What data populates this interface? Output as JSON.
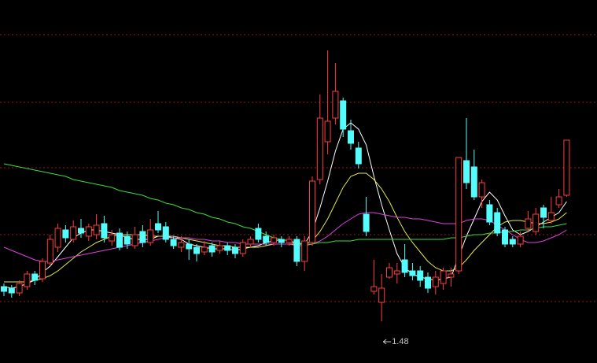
{
  "chart_data": {
    "type": "candlestick",
    "ylim": [
      1.215,
      3.52
    ],
    "up_color": "#ff3c3c",
    "down_color": "#54fcfc",
    "background": "#000000",
    "grid_color": "#a01818",
    "annotation": "1.48",
    "open": [
      1.7,
      1.69,
      1.66,
      1.7,
      1.78,
      1.75,
      1.85,
      1.95,
      2.06,
      2.0,
      2.07,
      2.02,
      2.03,
      2.1,
      1.99,
      2.04,
      2.02,
      1.96,
      2.05,
      1.98,
      2.1,
      2.08,
      2.0,
      1.95,
      1.97,
      1.95,
      1.92,
      1.96,
      1.93,
      1.96,
      1.95,
      1.91,
      1.97,
      2.07,
      2.02,
      1.98,
      2.0,
      1.98,
      2.0,
      1.86,
      1.98,
      2.38,
      2.62,
      2.77,
      2.88,
      2.69,
      2.58,
      2.16,
      1.67,
      1.6,
      1.76,
      1.78,
      1.87,
      1.8,
      1.8,
      1.76,
      1.7,
      1.72,
      1.76,
      1.8,
      2.5,
      2.46,
      2.27,
      2.22,
      2.17,
      2.06,
      2.0,
      1.97,
      2.07,
      2.05,
      2.2,
      2.12,
      2.22,
      2.28
    ],
    "high": [
      1.72,
      1.71,
      1.74,
      1.8,
      1.8,
      1.88,
      2.03,
      2.1,
      2.09,
      2.12,
      2.13,
      2.1,
      2.16,
      2.15,
      2.06,
      2.07,
      2.05,
      2.08,
      2.09,
      2.13,
      2.18,
      2.11,
      2.02,
      2.02,
      2.0,
      1.97,
      1.99,
      1.98,
      1.99,
      1.98,
      1.97,
      2.0,
      2.02,
      2.1,
      2.05,
      2.03,
      2.02,
      2.02,
      2.02,
      2.02,
      2.4,
      2.92,
      3.2,
      3.12,
      2.9,
      2.76,
      2.62,
      2.27,
      1.87,
      1.78,
      1.85,
      1.85,
      1.97,
      1.85,
      1.83,
      1.79,
      1.8,
      1.82,
      1.82,
      2.52,
      2.77,
      2.57,
      2.38,
      2.25,
      2.2,
      2.08,
      2.02,
      2.05,
      2.18,
      2.2,
      2.22,
      2.27,
      2.32,
      2.63
    ],
    "low": [
      1.64,
      1.63,
      1.64,
      1.68,
      1.71,
      1.73,
      1.83,
      1.92,
      1.98,
      1.98,
      2.01,
      1.99,
      2.0,
      1.98,
      1.96,
      1.93,
      1.94,
      1.94,
      1.95,
      1.96,
      2.04,
      1.98,
      1.94,
      1.92,
      1.87,
      1.86,
      1.9,
      1.89,
      1.91,
      1.9,
      1.88,
      1.89,
      1.95,
      1.98,
      1.96,
      1.96,
      1.95,
      1.96,
      1.83,
      1.8,
      1.96,
      2.35,
      2.54,
      2.73,
      2.65,
      2.57,
      2.45,
      2.02,
      1.65,
      1.48,
      1.75,
      1.72,
      1.76,
      1.74,
      1.7,
      1.66,
      1.65,
      1.68,
      1.7,
      1.78,
      2.32,
      2.25,
      2.2,
      2.09,
      2.02,
      1.95,
      1.95,
      1.95,
      2.05,
      2.03,
      2.07,
      2.1,
      2.2,
      2.27
    ],
    "close": [
      1.67,
      1.66,
      1.72,
      1.78,
      1.74,
      1.86,
      2.0,
      2.07,
      2.01,
      2.08,
      2.04,
      2.08,
      2.09,
      2.01,
      2.03,
      1.95,
      1.97,
      2.03,
      1.98,
      2.06,
      2.06,
      2.0,
      1.96,
      1.98,
      1.94,
      1.91,
      1.95,
      1.92,
      1.96,
      1.93,
      1.91,
      1.98,
      2.0,
      2.0,
      1.98,
      2.01,
      1.98,
      2.0,
      1.86,
      1.99,
      2.37,
      2.77,
      2.75,
      2.94,
      2.7,
      2.61,
      2.48,
      2.05,
      1.7,
      1.69,
      1.82,
      1.8,
      1.79,
      1.77,
      1.74,
      1.69,
      1.76,
      1.8,
      1.78,
      2.52,
      2.36,
      2.27,
      2.36,
      2.11,
      2.04,
      1.97,
      1.97,
      2.02,
      2.13,
      2.16,
      2.14,
      2.17,
      2.27,
      2.63
    ],
    "lines": [
      {
        "color": "#ffffff",
        "values": [
          1.7,
          1.69,
          1.7,
          1.72,
          1.74,
          1.79,
          1.83,
          1.89,
          1.95,
          2.01,
          2.04,
          2.06,
          2.06,
          2.05,
          2.04,
          2.03,
          2.01,
          2.0,
          2.0,
          2.0,
          2.02,
          2.02,
          2.01,
          2.0,
          1.97,
          1.96,
          1.95,
          1.94,
          1.94,
          1.94,
          1.93,
          1.94,
          1.95,
          1.96,
          1.98,
          1.99,
          2.0,
          1.99,
          1.97,
          1.97,
          2.05,
          2.2,
          2.37,
          2.56,
          2.7,
          2.74,
          2.7,
          2.6,
          2.4,
          2.22,
          2.06,
          1.91,
          1.82,
          1.78,
          1.76,
          1.75,
          1.74,
          1.75,
          1.76,
          1.89,
          2.02,
          2.13,
          2.24,
          2.3,
          2.25,
          2.15,
          2.06,
          2.03,
          2.05,
          2.08,
          2.11,
          2.14,
          2.17,
          2.24
        ]
      },
      {
        "color": "#e8e84a",
        "values": [
          1.73,
          1.73,
          1.73,
          1.73,
          1.74,
          1.75,
          1.77,
          1.8,
          1.84,
          1.88,
          1.92,
          1.95,
          1.98,
          2.0,
          2.02,
          2.03,
          2.03,
          2.03,
          2.03,
          2.02,
          2.02,
          2.02,
          2.02,
          2.01,
          2.0,
          1.99,
          1.98,
          1.97,
          1.96,
          1.96,
          1.95,
          1.95,
          1.95,
          1.95,
          1.96,
          1.97,
          1.97,
          1.97,
          1.97,
          1.97,
          1.99,
          2.05,
          2.13,
          2.23,
          2.33,
          2.4,
          2.42,
          2.42,
          2.38,
          2.32,
          2.24,
          2.14,
          2.05,
          1.98,
          1.92,
          1.86,
          1.82,
          1.8,
          1.8,
          1.82,
          1.87,
          1.93,
          1.98,
          2.03,
          2.08,
          2.11,
          2.12,
          2.12,
          2.11,
          2.1,
          2.1,
          2.11,
          2.13,
          2.17
        ]
      },
      {
        "color": "#e040e0",
        "values": [
          1.95,
          1.93,
          1.91,
          1.89,
          1.87,
          1.86,
          1.86,
          1.87,
          1.88,
          1.89,
          1.9,
          1.91,
          1.92,
          1.93,
          1.94,
          1.95,
          1.96,
          1.97,
          1.98,
          1.99,
          2.0,
          2.01,
          2.01,
          2.01,
          2.01,
          2.0,
          2.0,
          1.99,
          1.99,
          1.98,
          1.98,
          1.97,
          1.97,
          1.97,
          1.97,
          1.97,
          1.97,
          1.97,
          1.96,
          1.96,
          1.97,
          1.99,
          2.02,
          2.06,
          2.1,
          2.13,
          2.16,
          2.17,
          2.17,
          2.16,
          2.15,
          2.14,
          2.14,
          2.13,
          2.13,
          2.12,
          2.11,
          2.1,
          2.1,
          2.1,
          2.12,
          2.13,
          2.13,
          2.12,
          2.09,
          2.06,
          2.03,
          2.0,
          1.98,
          1.98,
          1.99,
          2.01,
          2.03,
          2.06
        ]
      },
      {
        "color": "#3cdc3c",
        "values": [
          2.48,
          2.47,
          2.46,
          2.45,
          2.44,
          2.43,
          2.42,
          2.41,
          2.4,
          2.38,
          2.37,
          2.36,
          2.35,
          2.34,
          2.33,
          2.31,
          2.3,
          2.29,
          2.28,
          2.26,
          2.25,
          2.23,
          2.22,
          2.2,
          2.19,
          2.17,
          2.16,
          2.14,
          2.13,
          2.11,
          2.1,
          2.08,
          2.07,
          2.05,
          2.03,
          2.01,
          2.0,
          1.99,
          1.98,
          1.97,
          1.97,
          1.98,
          1.98,
          1.99,
          1.99,
          1.99,
          2.0,
          2.0,
          2.0,
          2.0,
          2.0,
          2.0,
          2.0,
          2.0,
          2.0,
          2.0,
          2.0,
          2.0,
          2.01,
          2.01,
          2.02,
          2.03,
          2.03,
          2.04,
          2.04,
          2.05,
          2.05,
          2.06,
          2.06,
          2.07,
          2.08,
          2.08,
          2.09,
          2.1
        ]
      }
    ]
  }
}
